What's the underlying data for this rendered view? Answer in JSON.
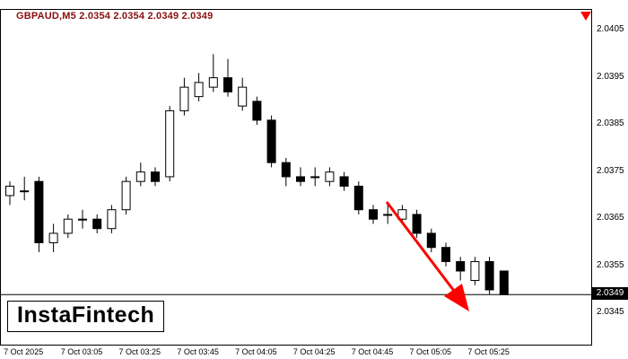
{
  "header": {
    "info_text": "GBPAUD,M5  2.0354 2.0354 2.0349 2.0349"
  },
  "logo": {
    "text": "InstaFintech"
  },
  "colors": {
    "background": "#ffffff",
    "frame": "#000000",
    "info_text": "#8a0f0f",
    "bull": "#ffffff",
    "bear": "#000000",
    "outline": "#000000",
    "arrow": "#ff0000",
    "axis_text": "#000000",
    "badge_bg": "#000000",
    "badge_text": "#ffffff"
  },
  "chart_data": {
    "type": "candlestick",
    "title": "GBPAUD,M5",
    "symbol": "GBPAUD",
    "timeframe": "M5",
    "readout": {
      "open": "2.0354",
      "high": "2.0354",
      "low": "2.0349",
      "close": "2.0349"
    },
    "bid": 2.0349,
    "bid_label": "2.0349",
    "grid": "off",
    "legend": "none",
    "ylim": [
      2.0338,
      2.04094
    ],
    "y_ticks": [
      "2.0405",
      "2.0395",
      "2.0385",
      "2.0375",
      "2.0365",
      "2.0355",
      "2.0345"
    ],
    "x_labels": [
      {
        "candle_index": 1,
        "label": "7 Oct 2025"
      },
      {
        "candle_index": 5,
        "label": "7 Oct 03:05"
      },
      {
        "candle_index": 9,
        "label": "7 Oct 03:25"
      },
      {
        "candle_index": 13,
        "label": "7 Oct 03:45"
      },
      {
        "candle_index": 17,
        "label": "7 Oct 04:05"
      },
      {
        "candle_index": 21,
        "label": "7 Oct 04:25"
      },
      {
        "candle_index": 25,
        "label": "7 Oct 04:45"
      },
      {
        "candle_index": 29,
        "label": "7 Oct 05:05"
      },
      {
        "candle_index": 33,
        "label": "7 Oct 05:25"
      }
    ],
    "candles": [
      {
        "t": "02:40",
        "o": 2.037,
        "h": 2.0373,
        "l": 2.0368,
        "c": 2.0372
      },
      {
        "t": "02:45",
        "o": 2.0371,
        "h": 2.0374,
        "l": 2.0369,
        "c": 2.0371
      },
      {
        "t": "02:50",
        "o": 2.0373,
        "h": 2.0374,
        "l": 2.0358,
        "c": 2.036
      },
      {
        "t": "02:55",
        "o": 2.036,
        "h": 2.0364,
        "l": 2.0358,
        "c": 2.0362
      },
      {
        "t": "03:00",
        "o": 2.0362,
        "h": 2.0366,
        "l": 2.0361,
        "c": 2.0365
      },
      {
        "t": "03:05",
        "o": 2.0365,
        "h": 2.0367,
        "l": 2.0363,
        "c": 2.0365
      },
      {
        "t": "03:10",
        "o": 2.0365,
        "h": 2.0366,
        "l": 2.0362,
        "c": 2.0363
      },
      {
        "t": "03:15",
        "o": 2.0363,
        "h": 2.0368,
        "l": 2.0362,
        "c": 2.0367
      },
      {
        "t": "03:20",
        "o": 2.0367,
        "h": 2.0374,
        "l": 2.0366,
        "c": 2.0373
      },
      {
        "t": "03:25",
        "o": 2.0373,
        "h": 2.0377,
        "l": 2.0372,
        "c": 2.0375
      },
      {
        "t": "03:30",
        "o": 2.0375,
        "h": 2.0376,
        "l": 2.0372,
        "c": 2.0373
      },
      {
        "t": "03:35",
        "o": 2.0374,
        "h": 2.0389,
        "l": 2.0373,
        "c": 2.0388
      },
      {
        "t": "03:40",
        "o": 2.0388,
        "h": 2.0395,
        "l": 2.0387,
        "c": 2.0393
      },
      {
        "t": "03:45",
        "o": 2.0391,
        "h": 2.0396,
        "l": 2.039,
        "c": 2.0394
      },
      {
        "t": "03:50",
        "o": 2.0393,
        "h": 2.04,
        "l": 2.0392,
        "c": 2.0395
      },
      {
        "t": "03:55",
        "o": 2.0395,
        "h": 2.0399,
        "l": 2.0391,
        "c": 2.0392
      },
      {
        "t": "04:00",
        "o": 2.0389,
        "h": 2.0395,
        "l": 2.0388,
        "c": 2.0393
      },
      {
        "t": "04:05",
        "o": 2.039,
        "h": 2.0391,
        "l": 2.0385,
        "c": 2.0386
      },
      {
        "t": "04:10",
        "o": 2.0386,
        "h": 2.0387,
        "l": 2.0376,
        "c": 2.0377
      },
      {
        "t": "04:15",
        "o": 2.0377,
        "h": 2.0378,
        "l": 2.0372,
        "c": 2.0374
      },
      {
        "t": "04:20",
        "o": 2.0374,
        "h": 2.0376,
        "l": 2.0372,
        "c": 2.0373
      },
      {
        "t": "04:25",
        "o": 2.0374,
        "h": 2.0376,
        "l": 2.0372,
        "c": 2.0374
      },
      {
        "t": "04:30",
        "o": 2.0373,
        "h": 2.0376,
        "l": 2.0372,
        "c": 2.0375
      },
      {
        "t": "04:35",
        "o": 2.0374,
        "h": 2.0375,
        "l": 2.0371,
        "c": 2.0372
      },
      {
        "t": "04:40",
        "o": 2.0372,
        "h": 2.0373,
        "l": 2.0366,
        "c": 2.0367
      },
      {
        "t": "04:45",
        "o": 2.0367,
        "h": 2.0368,
        "l": 2.0364,
        "c": 2.0365
      },
      {
        "t": "04:50",
        "o": 2.0366,
        "h": 2.0368,
        "l": 2.0364,
        "c": 2.0366
      },
      {
        "t": "04:55",
        "o": 2.0365,
        "h": 2.0368,
        "l": 2.0364,
        "c": 2.0367
      },
      {
        "t": "05:00",
        "o": 2.0366,
        "h": 2.0367,
        "l": 2.0361,
        "c": 2.0362
      },
      {
        "t": "05:05",
        "o": 2.0362,
        "h": 2.0363,
        "l": 2.0358,
        "c": 2.0359
      },
      {
        "t": "05:10",
        "o": 2.0359,
        "h": 2.036,
        "l": 2.0355,
        "c": 2.0356
      },
      {
        "t": "05:15",
        "o": 2.0356,
        "h": 2.0357,
        "l": 2.0352,
        "c": 2.0354
      },
      {
        "t": "05:20",
        "o": 2.0352,
        "h": 2.0357,
        "l": 2.0351,
        "c": 2.0356
      },
      {
        "t": "05:25",
        "o": 2.0356,
        "h": 2.0357,
        "l": 2.0349,
        "c": 2.035
      },
      {
        "t": "05:30",
        "o": 2.0354,
        "h": 2.0354,
        "l": 2.0349,
        "c": 2.0349
      }
    ],
    "annotations": {
      "trend_arrow": {
        "direction": "down",
        "x1": 430,
        "y1": 214,
        "x2": 505,
        "y2": 313,
        "tip": [
          522,
          336
        ],
        "head": [
          [
            494,
            319
          ],
          [
            514,
            305
          ]
        ]
      },
      "shift_marker": "646,2 658,2 652,12"
    }
  }
}
